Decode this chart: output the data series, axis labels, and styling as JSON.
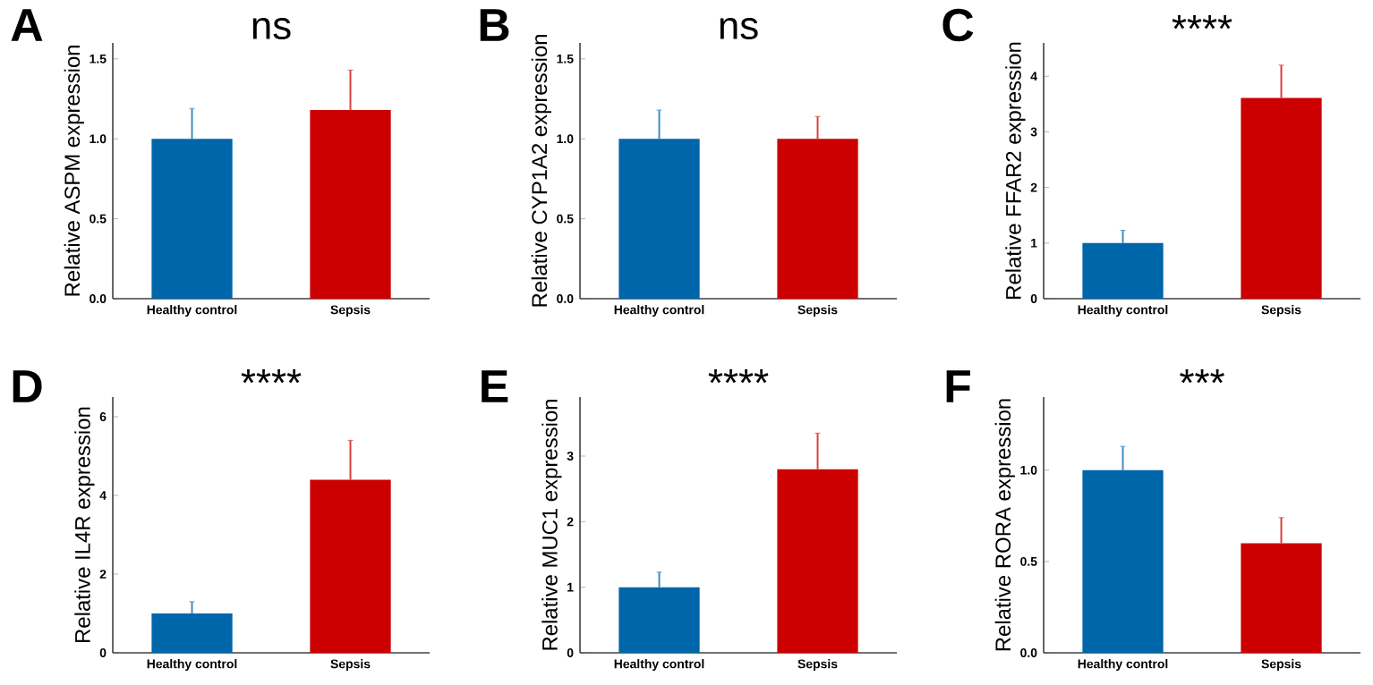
{
  "chart_data": [
    {
      "type": "bar",
      "title": "ns",
      "ylabel": "Relative ASPM expression",
      "annotations": [
        "A"
      ],
      "categories": [
        "Healthy control",
        "Sepsis"
      ],
      "values": [
        1.0,
        1.18
      ],
      "errors": [
        [
          1.0,
          1.19
        ],
        [
          1.18,
          1.43
        ]
      ],
      "colors": [
        "#0066aa",
        "#cc0000"
      ],
      "ylim": [
        0,
        1.6
      ],
      "yticks": [
        {
          "value": 0,
          "label": "0.0"
        },
        {
          "value": 0.5,
          "label": "0.5"
        },
        {
          "value": 1.0,
          "label": "1.0"
        },
        {
          "value": 1.5,
          "label": "1.5"
        }
      ]
    },
    {
      "type": "bar",
      "title": "ns",
      "ylabel": "Relative CYP1A2 expression",
      "annotations": [
        "B"
      ],
      "categories": [
        "Healthy control",
        "Sepsis"
      ],
      "values": [
        1.0,
        1.0
      ],
      "errors": [
        [
          1.0,
          1.18
        ],
        [
          1.0,
          1.14
        ]
      ],
      "colors": [
        "#0066aa",
        "#cc0000"
      ],
      "ylim": [
        0,
        1.6
      ],
      "yticks": [
        {
          "value": 0,
          "label": "0.0"
        },
        {
          "value": 0.5,
          "label": "0.5"
        },
        {
          "value": 1.0,
          "label": "1.0"
        },
        {
          "value": 1.5,
          "label": "1.5"
        }
      ]
    },
    {
      "type": "bar",
      "title": "****",
      "ylabel": "Relative FFAR2 expression",
      "annotations": [
        "C"
      ],
      "categories": [
        "Healthy control",
        "Sepsis"
      ],
      "values": [
        1.0,
        3.61
      ],
      "errors": [
        [
          1.0,
          1.23
        ],
        [
          3.61,
          4.2
        ]
      ],
      "colors": [
        "#0066aa",
        "#cc0000"
      ],
      "ylim": [
        0,
        4.6
      ],
      "yticks": [
        0,
        1,
        2,
        3,
        4
      ]
    },
    {
      "type": "bar",
      "title": "****",
      "ylabel": "Relative IL4R expression",
      "annotations": [
        "D"
      ],
      "categories": [
        "Healthy control",
        "Sepsis"
      ],
      "values": [
        1.0,
        4.4
      ],
      "errors": [
        [
          1.0,
          1.3
        ],
        [
          4.4,
          5.4
        ]
      ],
      "colors": [
        "#0066aa",
        "#cc0000"
      ],
      "ylim": [
        0,
        6.5
      ],
      "yticks": [
        0,
        2,
        4,
        6
      ]
    },
    {
      "type": "bar",
      "title": "****",
      "ylabel": "Relative MUC1 expression",
      "annotations": [
        "E"
      ],
      "categories": [
        "Healthy control",
        "Sepsis"
      ],
      "values": [
        1.0,
        2.8
      ],
      "errors": [
        [
          1.0,
          1.23
        ],
        [
          2.8,
          3.35
        ]
      ],
      "colors": [
        "#0066aa",
        "#cc0000"
      ],
      "ylim": [
        0,
        3.9
      ],
      "yticks": [
        0,
        1,
        2,
        3
      ]
    },
    {
      "type": "bar",
      "title": "***",
      "ylabel": "Relative RORA expression",
      "annotations": [
        "F"
      ],
      "categories": [
        "Healthy control",
        "Sepsis"
      ],
      "values": [
        1.0,
        0.6
      ],
      "errors": [
        [
          1.0,
          1.13
        ],
        [
          0.6,
          0.74
        ]
      ],
      "colors": [
        "#0066aa",
        "#cc0000"
      ],
      "ylim": [
        0,
        1.4
      ],
      "yticks": [
        {
          "value": 0,
          "label": "0.0"
        },
        {
          "value": 0.5,
          "label": "0.5"
        },
        {
          "value": 1.0,
          "label": "1.0"
        }
      ]
    }
  ]
}
